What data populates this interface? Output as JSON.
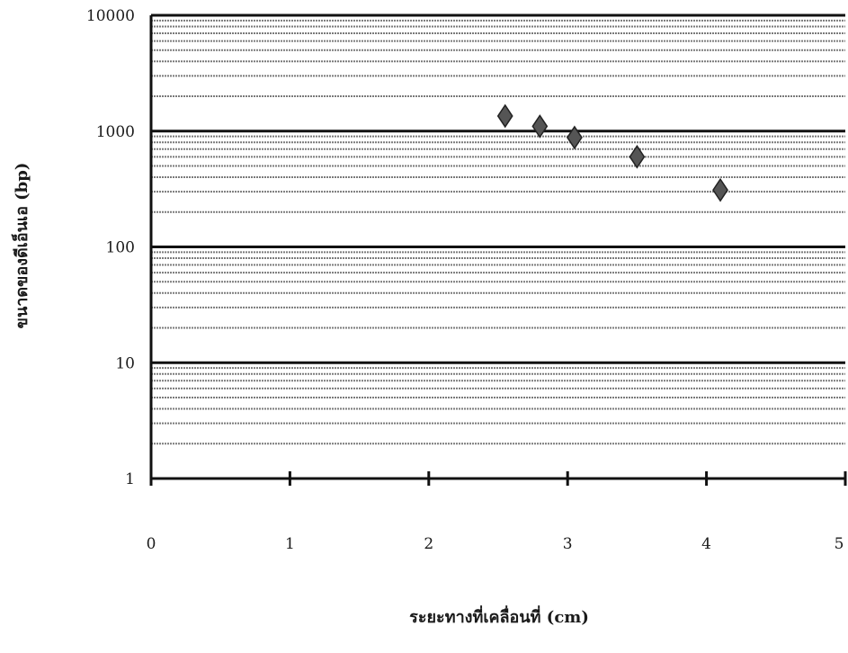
{
  "chart_data": {
    "type": "scatter",
    "xlabel": "ระยะทางที่เคลื่อนที่ (cm)",
    "ylabel": "ขนาดของดีเอ็นเอ (bp)",
    "x_scale": "linear",
    "y_scale": "log",
    "xlim": [
      0,
      5
    ],
    "ylim": [
      1,
      10000
    ],
    "x_ticks": [
      0,
      1,
      2,
      3,
      4,
      5
    ],
    "y_ticks": [
      1,
      10,
      100,
      1000,
      10000
    ],
    "x_tick_labels": [
      "0",
      "1",
      "2",
      "3",
      "4",
      "5"
    ],
    "y_tick_labels": [
      "1",
      "10",
      "100",
      "1000",
      "10000"
    ],
    "grid": "log minor and major horizontal lines",
    "legend": "none",
    "marker": "diamond",
    "marker_color": "#555555",
    "points": [
      {
        "x": 2.55,
        "y": 1350
      },
      {
        "x": 2.8,
        "y": 1100
      },
      {
        "x": 3.05,
        "y": 880
      },
      {
        "x": 3.5,
        "y": 600
      },
      {
        "x": 4.1,
        "y": 310
      }
    ]
  }
}
